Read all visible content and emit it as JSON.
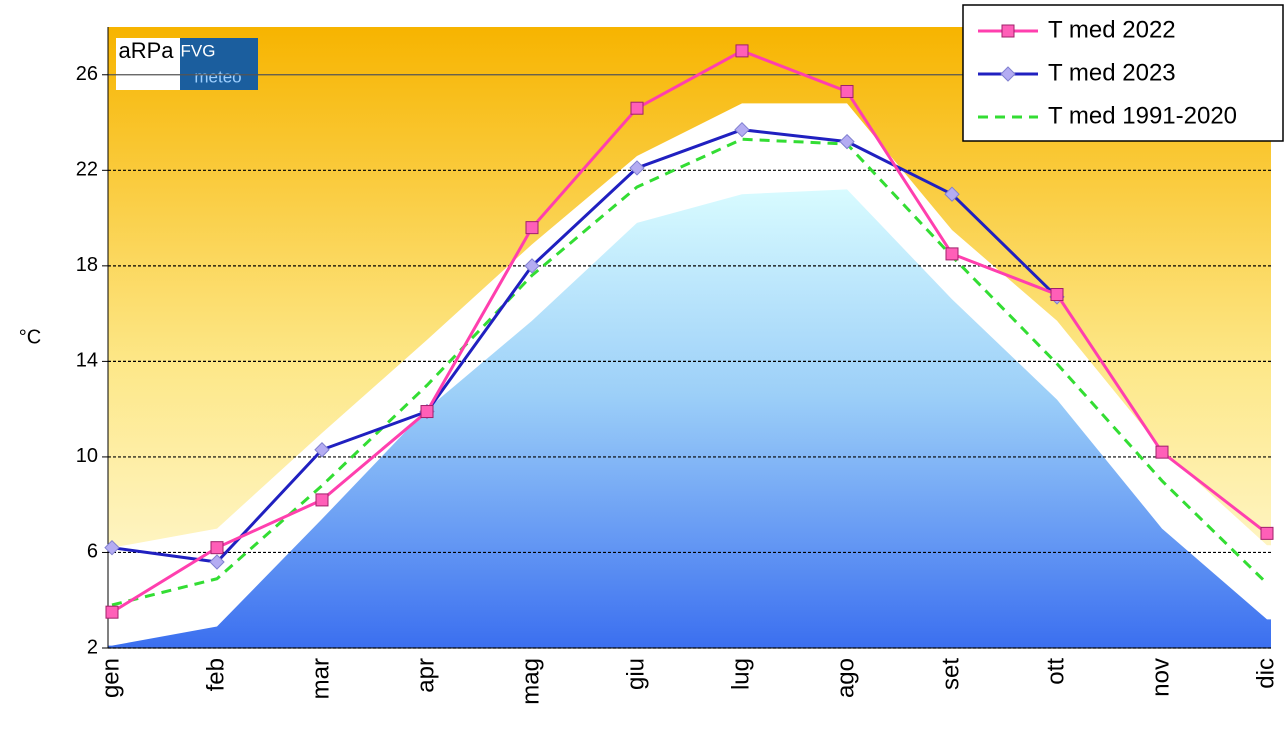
{
  "chart_data": {
    "type": "line",
    "categories": [
      "gen",
      "feb",
      "mar",
      "apr",
      "mag",
      "giu",
      "lug",
      "ago",
      "set",
      "ott",
      "nov",
      "dic"
    ],
    "ylabel": "°C",
    "ylim": [
      2,
      28
    ],
    "yticks": [
      2,
      6,
      10,
      14,
      18,
      22,
      26
    ],
    "grid": true,
    "legend": "upper right",
    "logo": {
      "left": "aRPa",
      "top": "FVG",
      "bottom": "meteo"
    },
    "series": [
      {
        "name": "T med 2022",
        "color": "#ff3fae",
        "marker": "square",
        "values": [
          3.5,
          6.2,
          8.2,
          11.9,
          19.6,
          24.6,
          27.0,
          25.3,
          18.5,
          16.8,
          10.2,
          6.8
        ]
      },
      {
        "name": "T med 2023",
        "color": "#2020c0",
        "marker": "diamond",
        "values": [
          6.2,
          5.6,
          10.3,
          11.9,
          18.0,
          22.1,
          23.7,
          23.2,
          21.0,
          16.7,
          null,
          null
        ]
      },
      {
        "name": "T med 1991-2020",
        "color": "#33dd33",
        "dashed": true,
        "values": [
          3.8,
          4.9,
          8.8,
          13.0,
          17.6,
          21.3,
          23.3,
          23.1,
          18.4,
          13.9,
          9.0,
          4.7
        ]
      }
    ],
    "envelope": {
      "upper": [
        6.2,
        7.0,
        11.0,
        14.9,
        18.9,
        22.6,
        24.8,
        24.8,
        19.5,
        15.7,
        10.3,
        6.3
      ],
      "lower": [
        2.1,
        2.9,
        7.4,
        12.0,
        15.7,
        19.8,
        21.0,
        21.2,
        16.6,
        12.4,
        7.0,
        3.2
      ]
    }
  }
}
